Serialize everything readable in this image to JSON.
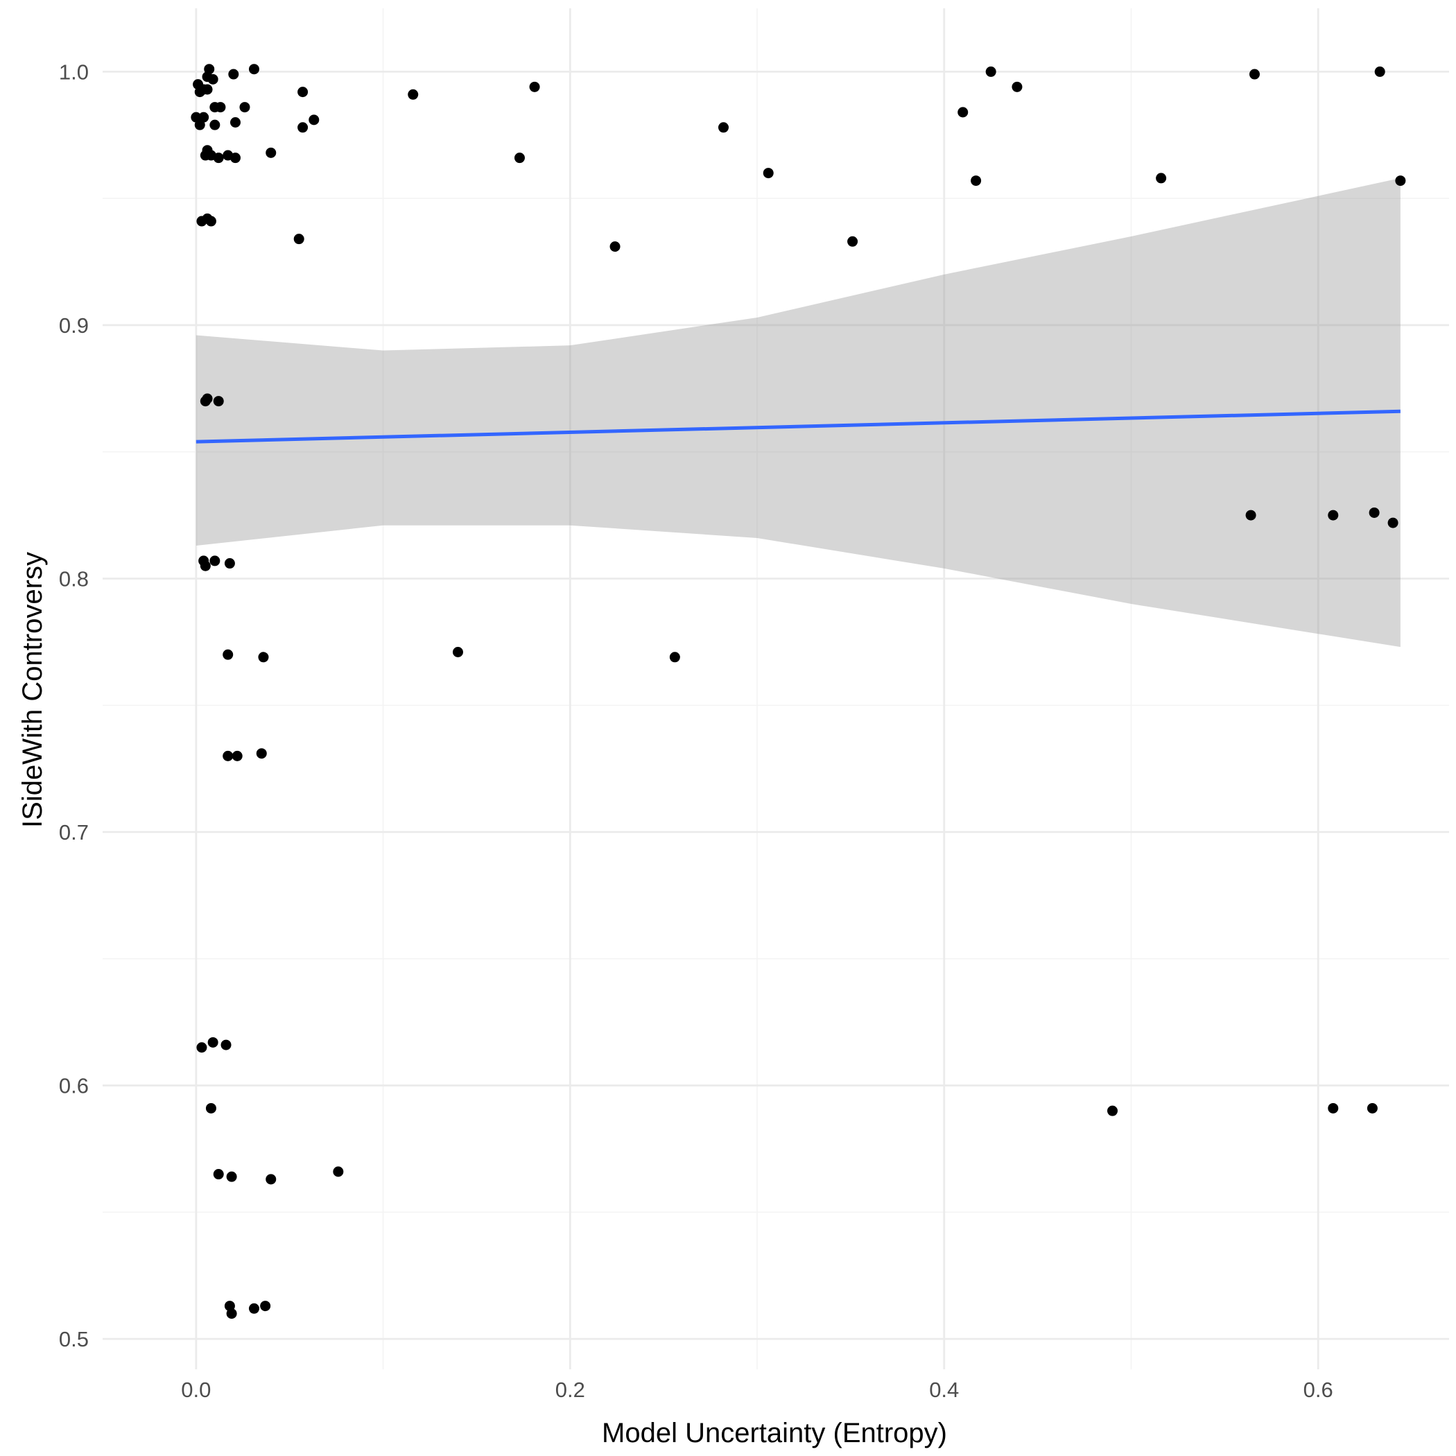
{
  "chart_data": {
    "type": "scatter",
    "xlabel": "Model Uncertainty (Entropy)",
    "ylabel": "ISideWith Controversy",
    "xlim": [
      -0.05,
      0.67
    ],
    "ylim": [
      0.488,
      1.025
    ],
    "x_ticks": [
      0.0,
      0.2,
      0.4,
      0.6
    ],
    "x_tick_labels": [
      "0.0",
      "0.2",
      "0.4",
      "0.6"
    ],
    "y_ticks": [
      0.5,
      0.6,
      0.7,
      0.8,
      0.9,
      1.0
    ],
    "y_tick_labels": [
      "0.5",
      "0.6",
      "0.7",
      "0.8",
      "0.9",
      "1.0"
    ],
    "grid": true,
    "colors": {
      "points": "#000000",
      "fit_line": "#3366ff",
      "ribbon": "#999999",
      "grid_major": "#ebebeb",
      "grid_minor": "#f4f4f4"
    },
    "points": [
      {
        "x": 0.001,
        "y": 0.995
      },
      {
        "x": 0.002,
        "y": 0.992
      },
      {
        "x": 0.004,
        "y": 0.993
      },
      {
        "x": 0.006,
        "y": 0.998
      },
      {
        "x": 0.007,
        "y": 1.001
      },
      {
        "x": 0.009,
        "y": 0.997
      },
      {
        "x": 0.006,
        "y": 0.993
      },
      {
        "x": 0.0,
        "y": 0.982
      },
      {
        "x": 0.002,
        "y": 0.979
      },
      {
        "x": 0.004,
        "y": 0.982
      },
      {
        "x": 0.005,
        "y": 0.967
      },
      {
        "x": 0.006,
        "y": 0.969
      },
      {
        "x": 0.008,
        "y": 0.967
      },
      {
        "x": 0.01,
        "y": 0.986
      },
      {
        "x": 0.01,
        "y": 0.979
      },
      {
        "x": 0.012,
        "y": 0.966
      },
      {
        "x": 0.013,
        "y": 0.986
      },
      {
        "x": 0.017,
        "y": 0.967
      },
      {
        "x": 0.02,
        "y": 0.999
      },
      {
        "x": 0.021,
        "y": 0.98
      },
      {
        "x": 0.021,
        "y": 0.966
      },
      {
        "x": 0.026,
        "y": 0.986
      },
      {
        "x": 0.031,
        "y": 1.001
      },
      {
        "x": 0.04,
        "y": 0.968
      },
      {
        "x": 0.057,
        "y": 0.992
      },
      {
        "x": 0.057,
        "y": 0.978
      },
      {
        "x": 0.063,
        "y": 0.981
      },
      {
        "x": 0.003,
        "y": 0.941
      },
      {
        "x": 0.006,
        "y": 0.942
      },
      {
        "x": 0.008,
        "y": 0.941
      },
      {
        "x": 0.055,
        "y": 0.934
      },
      {
        "x": 0.116,
        "y": 0.991
      },
      {
        "x": 0.173,
        "y": 0.966
      },
      {
        "x": 0.181,
        "y": 0.994
      },
      {
        "x": 0.224,
        "y": 0.931
      },
      {
        "x": 0.282,
        "y": 0.978
      },
      {
        "x": 0.306,
        "y": 0.96
      },
      {
        "x": 0.351,
        "y": 0.933
      },
      {
        "x": 0.41,
        "y": 0.984
      },
      {
        "x": 0.417,
        "y": 0.957
      },
      {
        "x": 0.425,
        "y": 1.0
      },
      {
        "x": 0.439,
        "y": 0.994
      },
      {
        "x": 0.516,
        "y": 0.958
      },
      {
        "x": 0.566,
        "y": 0.999
      },
      {
        "x": 0.633,
        "y": 1.0
      },
      {
        "x": 0.644,
        "y": 0.957
      },
      {
        "x": 0.005,
        "y": 0.87
      },
      {
        "x": 0.006,
        "y": 0.871
      },
      {
        "x": 0.012,
        "y": 0.87
      },
      {
        "x": 0.004,
        "y": 0.807
      },
      {
        "x": 0.005,
        "y": 0.805
      },
      {
        "x": 0.01,
        "y": 0.807
      },
      {
        "x": 0.018,
        "y": 0.806
      },
      {
        "x": 0.564,
        "y": 0.825
      },
      {
        "x": 0.608,
        "y": 0.825
      },
      {
        "x": 0.63,
        "y": 0.826
      },
      {
        "x": 0.64,
        "y": 0.822
      },
      {
        "x": 0.017,
        "y": 0.77
      },
      {
        "x": 0.036,
        "y": 0.769
      },
      {
        "x": 0.14,
        "y": 0.771
      },
      {
        "x": 0.256,
        "y": 0.769
      },
      {
        "x": 0.017,
        "y": 0.73
      },
      {
        "x": 0.022,
        "y": 0.73
      },
      {
        "x": 0.035,
        "y": 0.731
      },
      {
        "x": 0.003,
        "y": 0.615
      },
      {
        "x": 0.009,
        "y": 0.617
      },
      {
        "x": 0.016,
        "y": 0.616
      },
      {
        "x": 0.008,
        "y": 0.591
      },
      {
        "x": 0.012,
        "y": 0.565
      },
      {
        "x": 0.019,
        "y": 0.564
      },
      {
        "x": 0.04,
        "y": 0.563
      },
      {
        "x": 0.076,
        "y": 0.566
      },
      {
        "x": 0.49,
        "y": 0.59
      },
      {
        "x": 0.608,
        "y": 0.591
      },
      {
        "x": 0.629,
        "y": 0.591
      },
      {
        "x": 0.018,
        "y": 0.513
      },
      {
        "x": 0.019,
        "y": 0.51
      },
      {
        "x": 0.031,
        "y": 0.512
      },
      {
        "x": 0.037,
        "y": 0.513
      }
    ],
    "fit_line": [
      {
        "x": 0.0,
        "y": 0.854
      },
      {
        "x": 0.644,
        "y": 0.866
      }
    ],
    "confidence_band": [
      {
        "x": 0.0,
        "lower": 0.813,
        "upper": 0.896
      },
      {
        "x": 0.1,
        "lower": 0.821,
        "upper": 0.89
      },
      {
        "x": 0.2,
        "lower": 0.821,
        "upper": 0.892
      },
      {
        "x": 0.3,
        "lower": 0.816,
        "upper": 0.903
      },
      {
        "x": 0.4,
        "lower": 0.804,
        "upper": 0.92
      },
      {
        "x": 0.5,
        "lower": 0.79,
        "upper": 0.935
      },
      {
        "x": 0.644,
        "lower": 0.773,
        "upper": 0.958
      }
    ]
  }
}
